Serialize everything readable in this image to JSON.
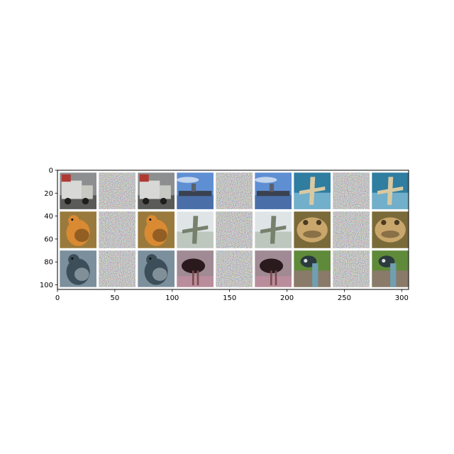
{
  "chart_data": {
    "type": "heatmap",
    "title": "",
    "xlabel": "",
    "ylabel": "",
    "xlim": [
      0,
      306
    ],
    "ylim": [
      104,
      0
    ],
    "image_grid": {
      "rows": 3,
      "cols": 9,
      "tile_px": 32,
      "padding_px": 2
    },
    "xticks": [
      0,
      50,
      100,
      150,
      200,
      250,
      300
    ],
    "yticks": [
      0,
      20,
      40,
      60,
      80,
      100
    ],
    "grid": false,
    "tiles": [
      {
        "row": 0,
        "col": 0,
        "kind": "photo",
        "subject": "truck-icon",
        "bg": "#8c8e90",
        "fg": "#d8d8d6",
        "accent": "#b03a32"
      },
      {
        "row": 0,
        "col": 1,
        "kind": "noise"
      },
      {
        "row": 0,
        "col": 2,
        "kind": "photo",
        "subject": "truck-icon",
        "bg": "#8c8e90",
        "fg": "#d8d8d6",
        "accent": "#b03a32"
      },
      {
        "row": 0,
        "col": 3,
        "kind": "photo",
        "subject": "ship-icon",
        "bg": "#5f8fd3",
        "fg": "#3a4150",
        "accent": "#eef2f8"
      },
      {
        "row": 0,
        "col": 4,
        "kind": "noise"
      },
      {
        "row": 0,
        "col": 5,
        "kind": "photo",
        "subject": "ship-icon",
        "bg": "#5f8fd3",
        "fg": "#3a4150",
        "accent": "#eef2f8"
      },
      {
        "row": 0,
        "col": 6,
        "kind": "photo",
        "subject": "airplane-icon",
        "bg": "#2f7da0",
        "fg": "#d8c9a2",
        "accent": "#9fd0e6"
      },
      {
        "row": 0,
        "col": 7,
        "kind": "noise"
      },
      {
        "row": 0,
        "col": 8,
        "kind": "photo",
        "subject": "airplane-icon",
        "bg": "#2f7da0",
        "fg": "#d8c9a2",
        "accent": "#9fd0e6"
      },
      {
        "row": 1,
        "col": 0,
        "kind": "photo",
        "subject": "bird-icon",
        "bg": "#9a7a3c",
        "fg": "#d98a32",
        "accent": "#5a3a1a"
      },
      {
        "row": 1,
        "col": 1,
        "kind": "noise"
      },
      {
        "row": 1,
        "col": 2,
        "kind": "photo",
        "subject": "bird-icon",
        "bg": "#9a7a3c",
        "fg": "#d98a32",
        "accent": "#5a3a1a"
      },
      {
        "row": 1,
        "col": 3,
        "kind": "photo",
        "subject": "airplane-icon",
        "bg": "#dfe5e6",
        "fg": "#76806c",
        "accent": "#a9b3a4"
      },
      {
        "row": 1,
        "col": 4,
        "kind": "noise"
      },
      {
        "row": 1,
        "col": 5,
        "kind": "photo",
        "subject": "airplane-icon",
        "bg": "#dfe5e6",
        "fg": "#76806c",
        "accent": "#a9b3a4"
      },
      {
        "row": 1,
        "col": 6,
        "kind": "photo",
        "subject": "frog-icon",
        "bg": "#7a6a3a",
        "fg": "#c9a66b",
        "accent": "#4a3a22"
      },
      {
        "row": 1,
        "col": 7,
        "kind": "noise"
      },
      {
        "row": 1,
        "col": 8,
        "kind": "photo",
        "subject": "frog-icon",
        "bg": "#7a6a3a",
        "fg": "#c9a66b",
        "accent": "#4a3a22"
      },
      {
        "row": 2,
        "col": 0,
        "kind": "photo",
        "subject": "bird-icon",
        "bg": "#7c8f9c",
        "fg": "#3c4e5a",
        "accent": "#b9c6cc"
      },
      {
        "row": 2,
        "col": 1,
        "kind": "noise"
      },
      {
        "row": 2,
        "col": 2,
        "kind": "photo",
        "subject": "bird-icon",
        "bg": "#7c8f9c",
        "fg": "#3c4e5a",
        "accent": "#b9c6cc"
      },
      {
        "row": 2,
        "col": 3,
        "kind": "photo",
        "subject": "ostrich-icon",
        "bg": "#a08a94",
        "fg": "#2a1a1e",
        "accent": "#c48fa0"
      },
      {
        "row": 2,
        "col": 4,
        "kind": "noise"
      },
      {
        "row": 2,
        "col": 5,
        "kind": "photo",
        "subject": "ostrich-icon",
        "bg": "#a08a94",
        "fg": "#2a1a1e",
        "accent": "#c48fa0"
      },
      {
        "row": 2,
        "col": 6,
        "kind": "photo",
        "subject": "emu-icon",
        "bg": "#5f8a3a",
        "fg": "#2a3a3e",
        "accent": "#6f9fb0"
      },
      {
        "row": 2,
        "col": 7,
        "kind": "noise"
      },
      {
        "row": 2,
        "col": 8,
        "kind": "photo",
        "subject": "emu-icon",
        "bg": "#5f8a3a",
        "fg": "#2a3a3e",
        "accent": "#6f9fb0"
      }
    ]
  }
}
